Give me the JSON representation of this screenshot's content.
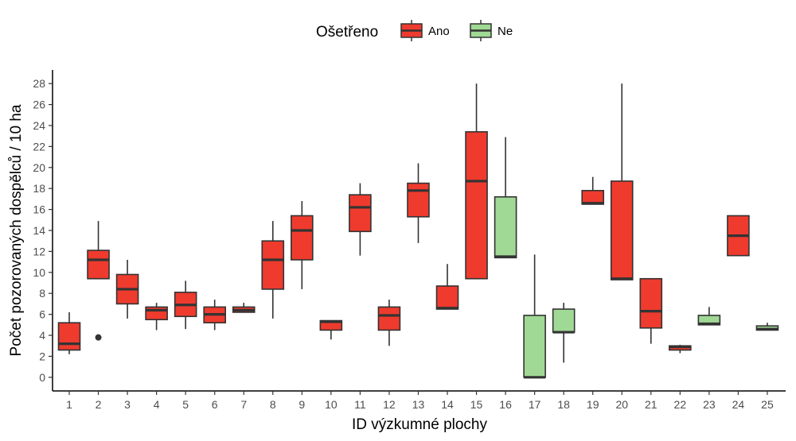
{
  "chart_data": {
    "type": "boxplot",
    "xlabel": "ID výzkumné plochy",
    "ylabel": "Počet pozorovaných dospělců / 10 ha",
    "ylim": [
      -1.3,
      29.3
    ],
    "yticks": [
      0,
      2,
      4,
      6,
      8,
      10,
      12,
      14,
      16,
      18,
      20,
      22,
      24,
      26,
      28
    ],
    "grid": false,
    "legend": {
      "title": "Ošetřeno",
      "position": "top",
      "entries": [
        {
          "label": "Ano",
          "color": "#EE3B2E"
        },
        {
          "label": "Ne",
          "color": "#A0D995"
        }
      ]
    },
    "categories": [
      "1",
      "2",
      "3",
      "4",
      "5",
      "6",
      "7",
      "8",
      "9",
      "10",
      "11",
      "12",
      "13",
      "14",
      "15",
      "16",
      "17",
      "18",
      "19",
      "20",
      "21",
      "22",
      "23",
      "24",
      "25"
    ],
    "boxes": [
      {
        "id": "1",
        "group": "Ano",
        "whisker_low": 2.2,
        "q1": 2.6,
        "median": 3.2,
        "q3": 5.2,
        "whisker_high": 6.2,
        "outliers": []
      },
      {
        "id": "2",
        "group": "Ano",
        "whisker_low": 9.4,
        "q1": 9.4,
        "median": 11.2,
        "q3": 12.1,
        "whisker_high": 14.9,
        "outliers": [
          3.8
        ]
      },
      {
        "id": "3",
        "group": "Ano",
        "whisker_low": 5.6,
        "q1": 7.0,
        "median": 8.4,
        "q3": 9.8,
        "whisker_high": 11.2,
        "outliers": []
      },
      {
        "id": "4",
        "group": "Ano",
        "whisker_low": 4.5,
        "q1": 5.5,
        "median": 6.4,
        "q3": 6.7,
        "whisker_high": 7.1,
        "outliers": []
      },
      {
        "id": "5",
        "group": "Ano",
        "whisker_low": 4.6,
        "q1": 5.8,
        "median": 6.9,
        "q3": 8.1,
        "whisker_high": 9.2,
        "outliers": []
      },
      {
        "id": "6",
        "group": "Ano",
        "whisker_low": 4.5,
        "q1": 5.2,
        "median": 6.0,
        "q3": 6.7,
        "whisker_high": 7.4,
        "outliers": []
      },
      {
        "id": "7",
        "group": "Ano",
        "whisker_low": 6.2,
        "q1": 6.2,
        "median": 6.4,
        "q3": 6.7,
        "whisker_high": 7.1,
        "outliers": []
      },
      {
        "id": "8",
        "group": "Ano",
        "whisker_low": 5.6,
        "q1": 8.4,
        "median": 11.2,
        "q3": 13.0,
        "whisker_high": 14.9,
        "outliers": []
      },
      {
        "id": "9",
        "group": "Ano",
        "whisker_low": 8.4,
        "q1": 11.2,
        "median": 14.0,
        "q3": 15.4,
        "whisker_high": 16.8,
        "outliers": []
      },
      {
        "id": "10",
        "group": "Ano",
        "whisker_low": 3.6,
        "q1": 4.5,
        "median": 5.3,
        "q3": 5.4,
        "whisker_high": 5.4,
        "outliers": []
      },
      {
        "id": "11",
        "group": "Ano",
        "whisker_low": 11.6,
        "q1": 13.9,
        "median": 16.2,
        "q3": 17.4,
        "whisker_high": 18.5,
        "outliers": []
      },
      {
        "id": "12",
        "group": "Ano",
        "whisker_low": 3.0,
        "q1": 4.5,
        "median": 5.9,
        "q3": 6.7,
        "whisker_high": 7.4,
        "outliers": []
      },
      {
        "id": "13",
        "group": "Ano",
        "whisker_low": 12.8,
        "q1": 15.3,
        "median": 17.8,
        "q3": 18.5,
        "whisker_high": 20.4,
        "outliers": []
      },
      {
        "id": "14",
        "group": "Ano",
        "whisker_low": 6.5,
        "q1": 6.5,
        "median": 6.6,
        "q3": 8.7,
        "whisker_high": 10.8,
        "outliers": []
      },
      {
        "id": "15",
        "group": "Ano",
        "whisker_low": 9.4,
        "q1": 9.4,
        "median": 18.7,
        "q3": 23.4,
        "whisker_high": 28.0,
        "outliers": []
      },
      {
        "id": "16",
        "group": "Ne",
        "whisker_low": 11.4,
        "q1": 11.4,
        "median": 11.5,
        "q3": 17.2,
        "whisker_high": 22.9,
        "outliers": []
      },
      {
        "id": "17",
        "group": "Ne",
        "whisker_low": 0.0,
        "q1": 0.0,
        "median": 0.0,
        "q3": 5.9,
        "whisker_high": 11.7,
        "outliers": []
      },
      {
        "id": "18",
        "group": "Ne",
        "whisker_low": 1.4,
        "q1": 4.3,
        "median": 4.3,
        "q3": 6.5,
        "whisker_high": 7.1,
        "outliers": []
      },
      {
        "id": "19",
        "group": "Ano",
        "whisker_low": 16.5,
        "q1": 16.5,
        "median": 16.6,
        "q3": 17.8,
        "whisker_high": 19.1,
        "outliers": []
      },
      {
        "id": "20",
        "group": "Ano",
        "whisker_low": 9.3,
        "q1": 9.3,
        "median": 9.4,
        "q3": 18.7,
        "whisker_high": 28.0,
        "outliers": []
      },
      {
        "id": "21",
        "group": "Ano",
        "whisker_low": 3.2,
        "q1": 4.7,
        "median": 6.3,
        "q3": 9.4,
        "whisker_high": 9.4,
        "outliers": []
      },
      {
        "id": "22",
        "group": "Ano",
        "whisker_low": 2.3,
        "q1": 2.6,
        "median": 2.9,
        "q3": 3.0,
        "whisker_high": 3.1,
        "outliers": []
      },
      {
        "id": "23",
        "group": "Ne",
        "whisker_low": 5.0,
        "q1": 5.0,
        "median": 5.1,
        "q3": 5.9,
        "whisker_high": 6.7,
        "outliers": []
      },
      {
        "id": "24",
        "group": "Ano",
        "whisker_low": 11.6,
        "q1": 11.6,
        "median": 13.5,
        "q3": 15.4,
        "whisker_high": 15.4,
        "outliers": []
      },
      {
        "id": "25",
        "group": "Ne",
        "whisker_low": 4.5,
        "q1": 4.5,
        "median": 4.6,
        "q3": 4.9,
        "whisker_high": 5.2,
        "outliers": []
      }
    ]
  }
}
